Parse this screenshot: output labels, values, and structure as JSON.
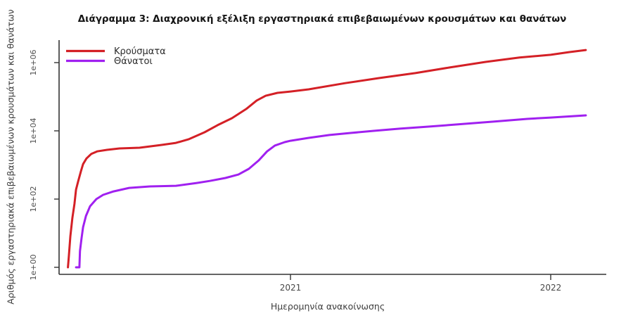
{
  "page": {
    "background": "#ffffff"
  },
  "chart_data": {
    "type": "line",
    "title": "Διάγραμμα 3: Διαχρονική εξέλιξη εργαστηριακά επιβεβαιωμένων κρουσμάτων και θανάτων",
    "xlabel": "Ημερομηνία ανακοίνωσης",
    "ylabel": "Αριθμός εργαστηριακά επιβεβαιωμένων κρουσμάτων και θανάτων",
    "y_scale": "log10",
    "ylim": [
      1,
      1000000
    ],
    "xlim_years": [
      2020.11,
      2022.21
    ],
    "grid": false,
    "legend_position": "top-left",
    "yticks": [
      {
        "label": "1e+00",
        "value": 1
      },
      {
        "label": "1e+02",
        "value": 100
      },
      {
        "label": "1e+04",
        "value": 10000
      },
      {
        "label": "1e+06",
        "value": 1000000
      }
    ],
    "xticks": [
      {
        "label": "2021",
        "value": 2021
      },
      {
        "label": "2022",
        "value": 2022
      }
    ],
    "series": [
      {
        "name": "Κρούσματα",
        "color": "#d42026",
        "points": [
          [
            2020.145,
            1
          ],
          [
            2020.148,
            2
          ],
          [
            2020.151,
            4
          ],
          [
            2020.154,
            8
          ],
          [
            2020.162,
            28
          ],
          [
            2020.17,
            73
          ],
          [
            2020.176,
            190
          ],
          [
            2020.184,
            330
          ],
          [
            2020.195,
            660
          ],
          [
            2020.203,
            1060
          ],
          [
            2020.216,
            1550
          ],
          [
            2020.235,
            2120
          ],
          [
            2020.257,
            2500
          ],
          [
            2020.295,
            2770
          ],
          [
            2020.343,
            3050
          ],
          [
            2020.42,
            3200
          ],
          [
            2020.505,
            3870
          ],
          [
            2020.56,
            4450
          ],
          [
            2020.61,
            5700
          ],
          [
            2020.67,
            9100
          ],
          [
            2020.72,
            14700
          ],
          [
            2020.775,
            23500
          ],
          [
            2020.83,
            43700
          ],
          [
            2020.87,
            77500
          ],
          [
            2020.905,
            107000
          ],
          [
            2020.95,
            130000
          ],
          [
            2021.0,
            142000
          ],
          [
            2021.07,
            165000
          ],
          [
            2021.21,
            250000
          ],
          [
            2021.34,
            352000
          ],
          [
            2021.48,
            492000
          ],
          [
            2021.61,
            718000
          ],
          [
            2021.75,
            1050000
          ],
          [
            2021.88,
            1410000
          ],
          [
            2022.0,
            1690000
          ],
          [
            2022.07,
            2030000
          ],
          [
            2022.135,
            2340000
          ]
        ]
      },
      {
        "name": "Θάνατοι",
        "color": "#a020f0",
        "points": [
          [
            2020.176,
            1
          ],
          [
            2020.189,
            1
          ],
          [
            2020.191,
            3
          ],
          [
            2020.197,
            7
          ],
          [
            2020.203,
            15
          ],
          [
            2020.214,
            32
          ],
          [
            2020.23,
            62
          ],
          [
            2020.254,
            100
          ],
          [
            2020.28,
            133
          ],
          [
            2020.32,
            168
          ],
          [
            2020.38,
            213
          ],
          [
            2020.46,
            235
          ],
          [
            2020.56,
            245
          ],
          [
            2020.64,
            297
          ],
          [
            2020.69,
            340
          ],
          [
            2020.75,
            415
          ],
          [
            2020.8,
            525
          ],
          [
            2020.84,
            770
          ],
          [
            2020.878,
            1360
          ],
          [
            2020.91,
            2500
          ],
          [
            2020.94,
            3700
          ],
          [
            2020.978,
            4680
          ],
          [
            2021.0,
            5130
          ],
          [
            2021.07,
            6230
          ],
          [
            2021.15,
            7540
          ],
          [
            2021.235,
            8700
          ],
          [
            2021.32,
            10000
          ],
          [
            2021.42,
            11600
          ],
          [
            2021.53,
            13300
          ],
          [
            2021.64,
            15400
          ],
          [
            2021.78,
            18600
          ],
          [
            2021.91,
            22400
          ],
          [
            2022.0,
            24500
          ],
          [
            2022.135,
            28400
          ]
        ]
      }
    ]
  }
}
